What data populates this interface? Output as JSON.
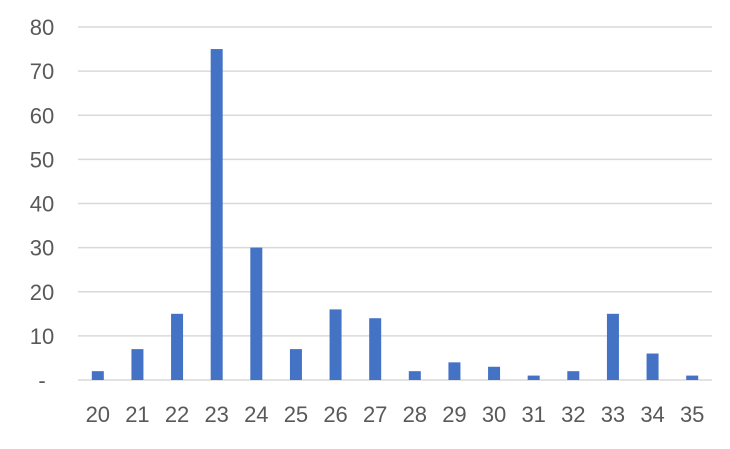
{
  "chart_data": {
    "type": "bar",
    "title": "",
    "xlabel": "",
    "ylabel": "",
    "categories": [
      "20",
      "21",
      "22",
      "23",
      "24",
      "25",
      "26",
      "27",
      "28",
      "29",
      "30",
      "31",
      "32",
      "33",
      "34",
      "35"
    ],
    "values": [
      2,
      7,
      15,
      75,
      30,
      7,
      16,
      14,
      2,
      4,
      3,
      1,
      2,
      15,
      6,
      1
    ],
    "ylim": [
      0,
      80
    ],
    "yticks": [
      0,
      10,
      20,
      30,
      40,
      50,
      60,
      70,
      80
    ],
    "ytick_labels": [
      "-",
      "10",
      "20",
      "30",
      "40",
      "50",
      "60",
      "70",
      "80"
    ],
    "grid": true,
    "legend": "none",
    "bar_color": "#4472C4",
    "grid_color": "#D9D9D9"
  }
}
